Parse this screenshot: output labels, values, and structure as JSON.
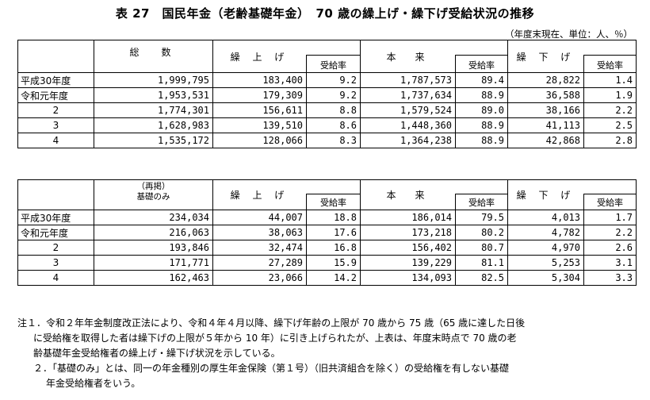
{
  "title": "表 27　国民年金（老齢基礎年金）　70 歳の繰上げ・繰下げ受給状況の推移",
  "unit_note": "（年度末現在、単位：人、％）",
  "headers": {
    "total": "総　数",
    "kuriage": "繰 上 げ",
    "honrai": "本　来",
    "kurisage": "繰 下 げ",
    "rate": "受給率",
    "kiso_sai": "（再掲）",
    "kiso_only": "基礎のみ"
  },
  "table1": {
    "rows": [
      {
        "label": "平成30年度",
        "total": "1,999,795",
        "kuriage": "183,400",
        "kuriage_rate": "9.2",
        "honrai": "1,787,573",
        "honrai_rate": "89.4",
        "kurisage": "28,822",
        "kurisage_rate": "1.4"
      },
      {
        "label": "令和元年度",
        "total": "1,953,531",
        "kuriage": "179,309",
        "kuriage_rate": "9.2",
        "honrai": "1,737,634",
        "honrai_rate": "88.9",
        "kurisage": "36,588",
        "kurisage_rate": "1.9"
      },
      {
        "label": "2",
        "total": "1,774,301",
        "kuriage": "156,611",
        "kuriage_rate": "8.8",
        "honrai": "1,579,524",
        "honrai_rate": "89.0",
        "kurisage": "38,166",
        "kurisage_rate": "2.2"
      },
      {
        "label": "3",
        "total": "1,628,983",
        "kuriage": "139,510",
        "kuriage_rate": "8.6",
        "honrai": "1,448,360",
        "honrai_rate": "88.9",
        "kurisage": "41,113",
        "kurisage_rate": "2.5"
      },
      {
        "label": "4",
        "total": "1,535,172",
        "kuriage": "128,066",
        "kuriage_rate": "8.3",
        "honrai": "1,364,238",
        "honrai_rate": "88.9",
        "kurisage": "42,868",
        "kurisage_rate": "2.8"
      }
    ]
  },
  "table2": {
    "rows": [
      {
        "label": "平成30年度",
        "total": "234,034",
        "kuriage": "44,007",
        "kuriage_rate": "18.8",
        "honrai": "186,014",
        "honrai_rate": "79.5",
        "kurisage": "4,013",
        "kurisage_rate": "1.7"
      },
      {
        "label": "令和元年度",
        "total": "216,063",
        "kuriage": "38,063",
        "kuriage_rate": "17.6",
        "honrai": "173,218",
        "honrai_rate": "80.2",
        "kurisage": "4,782",
        "kurisage_rate": "2.2"
      },
      {
        "label": "2",
        "total": "193,846",
        "kuriage": "32,474",
        "kuriage_rate": "16.8",
        "honrai": "156,402",
        "honrai_rate": "80.7",
        "kurisage": "4,970",
        "kurisage_rate": "2.6"
      },
      {
        "label": "3",
        "total": "171,771",
        "kuriage": "27,289",
        "kuriage_rate": "15.9",
        "honrai": "139,229",
        "honrai_rate": "81.1",
        "kurisage": "5,253",
        "kurisage_rate": "3.1"
      },
      {
        "label": "4",
        "total": "162,463",
        "kuriage": "23,066",
        "kuriage_rate": "14.2",
        "honrai": "134,093",
        "honrai_rate": "82.5",
        "kurisage": "5,304",
        "kurisage_rate": "3.3"
      }
    ]
  },
  "notes": {
    "n1_l1": "注１．令和２年年金制度改正法により、令和４年４月以降、繰下げ年齢の上限が 70 歳から 75 歳（65 歳に達した日後",
    "n1_l2": "に受給権を取得した者は繰下げの上限が５年から 10 年）に引き上げられたが、上表は、年度末時点で 70 歳の老",
    "n1_l3": "齢基礎年金受給権者の繰上げ・繰下げ状況を示している。",
    "n2_l1": "２．「基礎のみ」とは、同一の年金種別の厚生年金保険（第１号）（旧共済組合を除く）の受給権を有しない基礎",
    "n2_l2": "年金受給権者をいう。"
  }
}
